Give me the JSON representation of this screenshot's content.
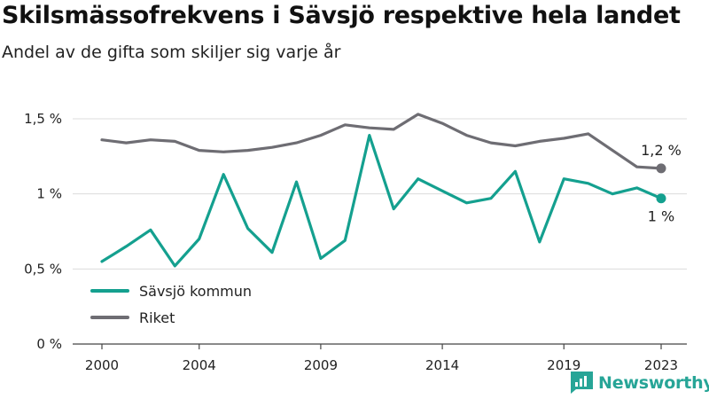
{
  "title": "Skilsmässofrekvens i Sävsjö respektive hela landet",
  "subtitle": "Andel av de gifta som skiljer sig varje år",
  "brand": "Newsworthy",
  "chart_data": {
    "type": "line",
    "x": [
      2000,
      2001,
      2002,
      2003,
      2004,
      2005,
      2006,
      2007,
      2008,
      2009,
      2010,
      2011,
      2012,
      2013,
      2014,
      2015,
      2016,
      2017,
      2018,
      2019,
      2020,
      2021,
      2022,
      2023
    ],
    "x_ticks": [
      2000,
      2004,
      2009,
      2014,
      2019,
      2023
    ],
    "y_ticks": [
      0,
      0.5,
      1,
      1.5
    ],
    "y_tick_labels": [
      "0 %",
      "0,5 %",
      "1 %",
      "1,5 %"
    ],
    "ylim": [
      0,
      1.5
    ],
    "grid": true,
    "legend_position": "lower-left",
    "series": [
      {
        "name": "Sävsjö kommun",
        "color": "#14a08f",
        "end_label": "1 %",
        "values": [
          0.55,
          0.65,
          0.76,
          0.52,
          0.7,
          1.13,
          0.77,
          0.61,
          1.08,
          0.57,
          0.69,
          1.39,
          0.9,
          1.1,
          1.02,
          0.94,
          0.97,
          1.15,
          0.68,
          1.1,
          1.07,
          1.0,
          1.04,
          0.97
        ]
      },
      {
        "name": "Riket",
        "color": "#6e6d73",
        "end_label": "1,2 %",
        "values": [
          1.36,
          1.34,
          1.36,
          1.35,
          1.29,
          1.28,
          1.29,
          1.31,
          1.34,
          1.39,
          1.46,
          1.44,
          1.43,
          1.53,
          1.47,
          1.39,
          1.34,
          1.32,
          1.35,
          1.37,
          1.4,
          1.29,
          1.18,
          1.17
        ]
      }
    ]
  }
}
